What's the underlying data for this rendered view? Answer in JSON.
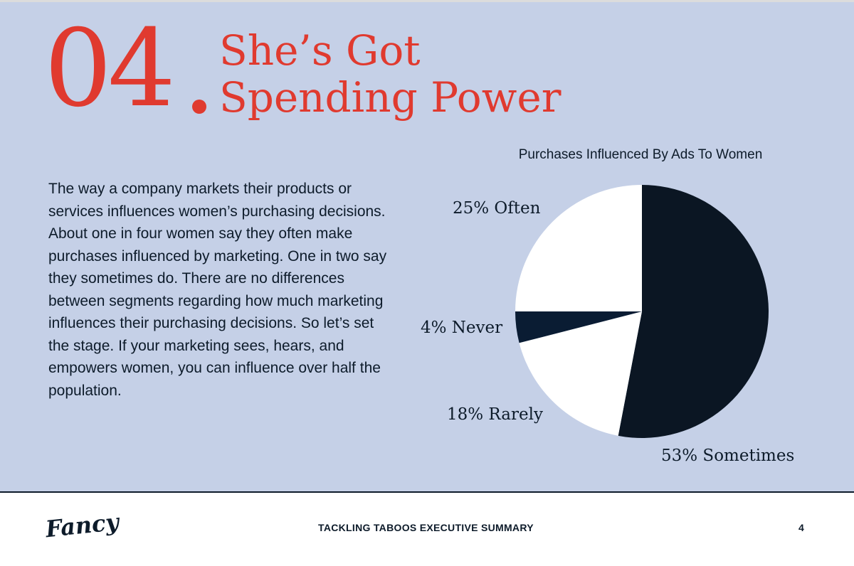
{
  "header": {
    "section_number": "04",
    "title_line1": "She’s Got",
    "title_line2": "Spending Power"
  },
  "body": {
    "paragraph": "The way a company markets their products or services influences women’s purchasing decisions. About one in four women say they often make purchases influenced by marketing. One in two say they sometimes do. There are no differences between segments regarding how much marketing influences their purchasing decisions. So let’s set the stage. If your marketing sees, hears, and empowers women, you can influence over half the population."
  },
  "chart_data": {
    "type": "pie",
    "title": "Purchases Influenced By Ads To Women",
    "slices": [
      {
        "name": "Sometimes",
        "value": 53,
        "label": "53% Sometimes",
        "color": "#0b1623"
      },
      {
        "name": "Rarely",
        "value": 18,
        "label": "18% Rarely",
        "color": "#ffffff"
      },
      {
        "name": "Never",
        "value": 4,
        "label": "4% Never",
        "color": "#0a1c33"
      },
      {
        "name": "Often",
        "value": 25,
        "label": "25% Often",
        "color": "#ffffff"
      }
    ],
    "start": "12 o'clock",
    "direction": "clockwise"
  },
  "footer": {
    "logo_text": "Fancy",
    "document_title": "TACKLING TABOOS EXECUTIVE SUMMARY",
    "page_number": "4"
  },
  "colors": {
    "background": "#c5d0e7",
    "accent": "#e03a2f",
    "navy": "#0d1b2a"
  }
}
